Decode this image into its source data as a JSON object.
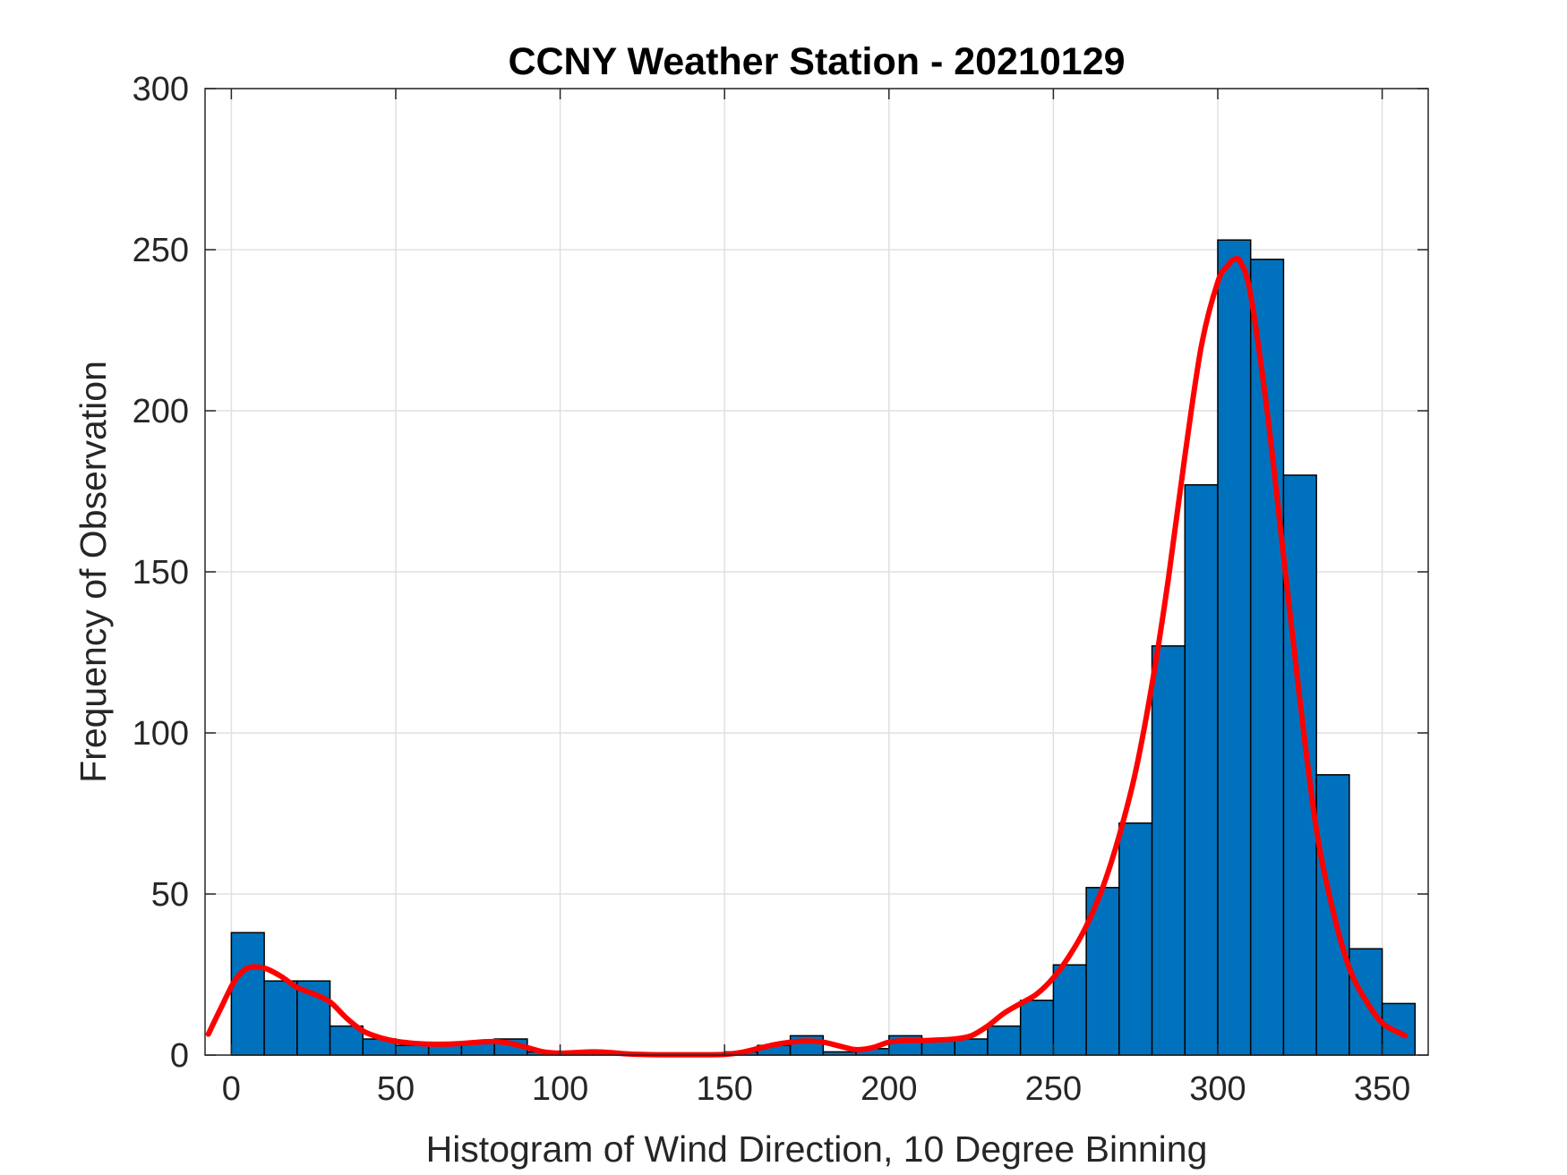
{
  "chart_data": {
    "type": "bar",
    "title": "CCNY Weather Station - 20210129",
    "xlabel": "Histogram of Wind Direction, 10 Degree Binning",
    "ylabel": "Frequency of Observation",
    "xlim": [
      -8,
      364
    ],
    "ylim": [
      0,
      300
    ],
    "xticks": [
      0,
      50,
      100,
      150,
      200,
      250,
      300,
      350
    ],
    "yticks": [
      0,
      50,
      100,
      150,
      200,
      250,
      300
    ],
    "grid": true,
    "bin_width": 10,
    "bins": [
      {
        "start": 0,
        "value": 38
      },
      {
        "start": 10,
        "value": 23
      },
      {
        "start": 20,
        "value": 23
      },
      {
        "start": 30,
        "value": 9
      },
      {
        "start": 40,
        "value": 5
      },
      {
        "start": 50,
        "value": 3
      },
      {
        "start": 60,
        "value": 3
      },
      {
        "start": 70,
        "value": 4
      },
      {
        "start": 80,
        "value": 5
      },
      {
        "start": 90,
        "value": 1
      },
      {
        "start": 100,
        "value": 1
      },
      {
        "start": 110,
        "value": 1
      },
      {
        "start": 120,
        "value": 0
      },
      {
        "start": 130,
        "value": 0
      },
      {
        "start": 140,
        "value": 0
      },
      {
        "start": 150,
        "value": 1
      },
      {
        "start": 160,
        "value": 3
      },
      {
        "start": 170,
        "value": 6
      },
      {
        "start": 180,
        "value": 1
      },
      {
        "start": 190,
        "value": 2
      },
      {
        "start": 200,
        "value": 6
      },
      {
        "start": 210,
        "value": 5
      },
      {
        "start": 220,
        "value": 5
      },
      {
        "start": 230,
        "value": 9
      },
      {
        "start": 240,
        "value": 17
      },
      {
        "start": 250,
        "value": 28
      },
      {
        "start": 260,
        "value": 52
      },
      {
        "start": 270,
        "value": 72
      },
      {
        "start": 280,
        "value": 127
      },
      {
        "start": 290,
        "value": 177
      },
      {
        "start": 300,
        "value": 253
      },
      {
        "start": 310,
        "value": 247
      },
      {
        "start": 320,
        "value": 180
      },
      {
        "start": 330,
        "value": 87
      },
      {
        "start": 340,
        "value": 33
      },
      {
        "start": 350,
        "value": 16
      }
    ],
    "fit_curve": {
      "x": [
        -7,
        -3,
        1,
        5,
        10,
        15,
        20,
        25,
        30,
        35,
        40,
        45,
        50,
        55,
        60,
        65,
        70,
        75,
        80,
        85,
        90,
        95,
        100,
        105,
        110,
        115,
        120,
        125,
        130,
        135,
        140,
        145,
        150,
        155,
        160,
        165,
        170,
        175,
        180,
        185,
        190,
        195,
        200,
        205,
        210,
        215,
        220,
        225,
        230,
        235,
        240,
        245,
        250,
        255,
        260,
        265,
        270,
        275,
        280,
        285,
        290,
        295,
        300,
        303,
        305,
        307,
        310,
        315,
        320,
        325,
        330,
        335,
        340,
        345,
        350,
        355,
        357
      ],
      "y": [
        6.5,
        15,
        23,
        27,
        27,
        24.5,
        21,
        19,
        16.5,
        11.5,
        7.5,
        5.5,
        4.3,
        3.7,
        3.4,
        3.4,
        3.6,
        4,
        4.2,
        3.6,
        2.3,
        1,
        0.6,
        0.8,
        1,
        0.8,
        0.4,
        0.2,
        0.1,
        0.1,
        0.1,
        0.1,
        0.2,
        0.8,
        2,
        3.2,
        4,
        4.4,
        4,
        2.8,
        1.7,
        2.3,
        4,
        4.5,
        4.5,
        4.7,
        5,
        6,
        9,
        13,
        16,
        19,
        24,
        31,
        40,
        52,
        68,
        88,
        115,
        148,
        186,
        220,
        240,
        245,
        247,
        246,
        236,
        200,
        155,
        110,
        70,
        45,
        27,
        17,
        10,
        7,
        6
      ],
      "color": "#ff0000"
    },
    "colors": {
      "bar_fill": "#0072bd",
      "bar_edge": "#000000",
      "grid": "#e0e0e0",
      "axis": "#262626"
    }
  }
}
